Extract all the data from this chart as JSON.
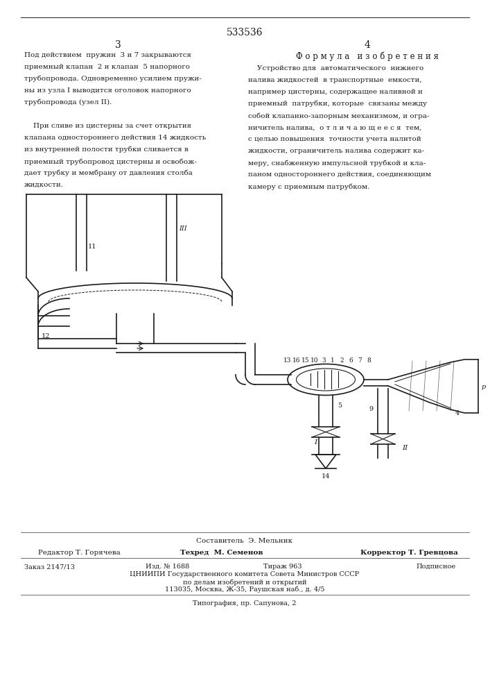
{
  "patent_number": "533536",
  "page_left": "3",
  "page_right": "4",
  "left_text": [
    "Под действием  пружин  3 и 7 закрываются",
    "приемный клапан  2 и клапан  5 напорного",
    "трубопровода. Одновременно усилием пружи-",
    "ны из узла I выводится оголовок напорного",
    "трубопровода (узел II).",
    "",
    "    При сливе из цистерны за счет открытия",
    "клапана одностороннего действия 14 жидкость",
    "из внутренней полости трубки сливается в",
    "приемный трубопровод цистерны и освобож-",
    "дает трубку и мембрану от давления столба",
    "жидкости."
  ],
  "right_header": "Ф о р м у л а   и з о б р е т е н и я",
  "right_text": [
    "    Устройство для  автоматического  нижнего",
    "налива жидкостей  в транспортные  емкости,",
    "например цистерны, содержащее наливной и",
    "приемный  патрубки, которые  связаны между",
    "собой клапанно-запорным механизмом, и огра-",
    "ничитель налива,  о т л и ч а ю щ е е с я  тем,",
    "с целью повышения  точности учета налитой",
    "жидкости, ограничитель налива содержит ка-",
    "меру, снабженную импульсной трубкой и кла-",
    "паном одностороннего действия, соединяющим",
    "камеру с приемным патрубком."
  ],
  "footer_composer": "Составитель  Э. Мельник",
  "footer_editor": "Редактор Т. Горячева",
  "footer_tech": "Техред  М. Семенов",
  "footer_corrector": "Корректор Т. Гревцова",
  "footer_order": "Заказ 2147/13",
  "footer_izd": "Изд. № 1688",
  "footer_tirazh": "Тираж 963",
  "footer_podp": "Подписное",
  "footer_org": "ЦНИИПИ Государственного комитета Совета Министров СССР",
  "footer_org2": "по делам изобретений и открытий",
  "footer_org3": "113035, Москва, Ж-35, Раушская наб., д. 4/5",
  "footer_tip": "Типография, пр. Сапунова, 2",
  "bg_color": "#ffffff",
  "text_color": "#1a1a1a",
  "line_color": "#333333"
}
